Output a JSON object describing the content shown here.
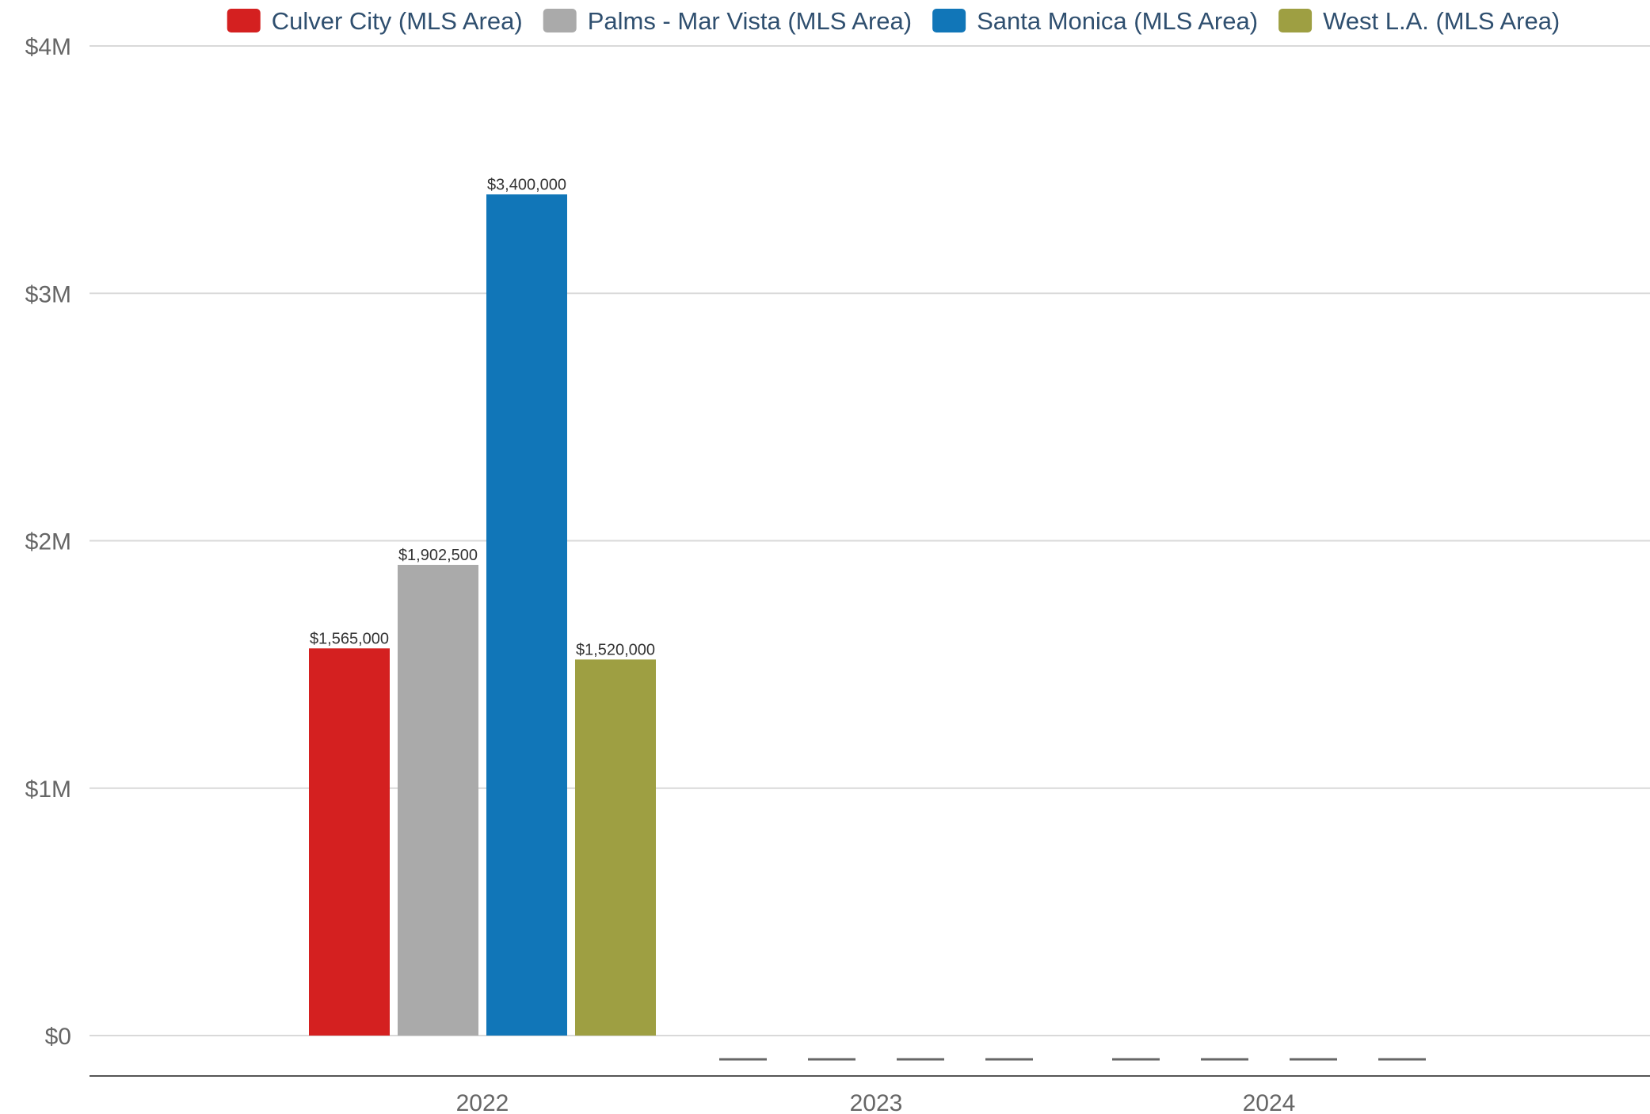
{
  "chart_data": {
    "type": "bar",
    "title": "",
    "xlabel": "",
    "ylabel": "",
    "categories": [
      "2022",
      "2023",
      "2024"
    ],
    "ylim": [
      0,
      4000000
    ],
    "y_ticks": [
      {
        "value": 0,
        "label": "$0"
      },
      {
        "value": 1000000,
        "label": "$1M"
      },
      {
        "value": 2000000,
        "label": "$2M"
      },
      {
        "value": 3000000,
        "label": "$3M"
      },
      {
        "value": 4000000,
        "label": "$4M"
      }
    ],
    "grid": true,
    "legend_position": "top",
    "no_data_marker": "——",
    "series": [
      {
        "name": "Culver City (MLS Area)",
        "color": "#d42020",
        "values": [
          1565000,
          null,
          null
        ],
        "labels": [
          "$1,565,000",
          "",
          ""
        ]
      },
      {
        "name": "Palms - Mar Vista (MLS Area)",
        "color": "#aaaaaa",
        "values": [
          1902500,
          null,
          null
        ],
        "labels": [
          "$1,902,500",
          "",
          ""
        ]
      },
      {
        "name": "Santa Monica (MLS Area)",
        "color": "#1176b8",
        "values": [
          3400000,
          null,
          null
        ],
        "labels": [
          "$3,400,000",
          "",
          ""
        ]
      },
      {
        "name": "West L.A. (MLS Area)",
        "color": "#9e9f42",
        "values": [
          1520000,
          null,
          null
        ],
        "labels": [
          "$1,520,000",
          "",
          ""
        ]
      }
    ]
  }
}
